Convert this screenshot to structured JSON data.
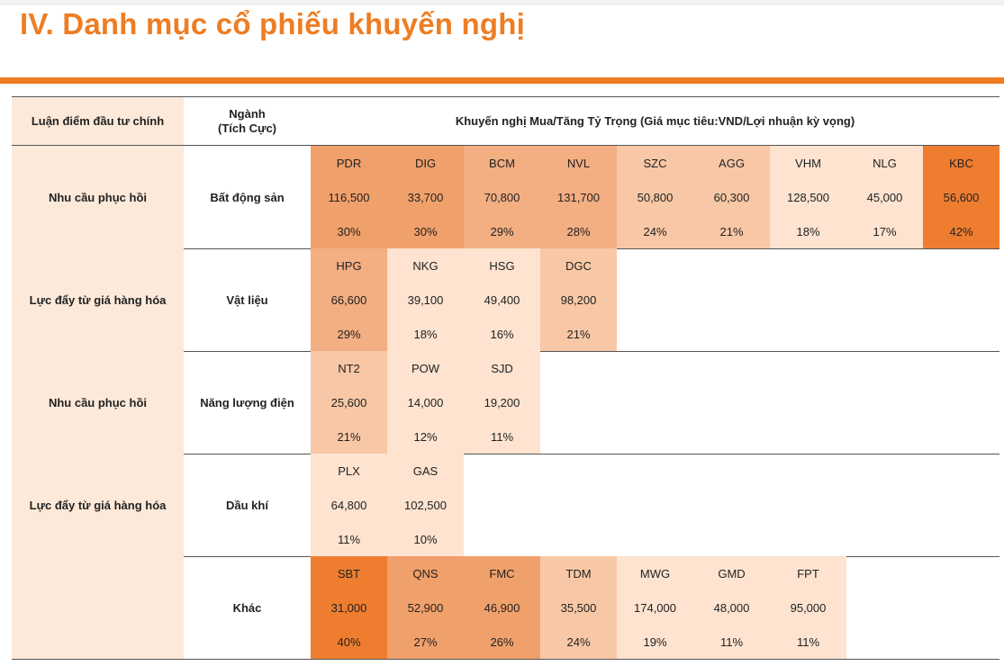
{
  "page_title": "IV. Danh mục cổ phiếu khuyến nghị",
  "table": {
    "headers": {
      "col1": "Luận điểm đầu tư chính",
      "col2_line1": "Ngành",
      "col2_line2": "(Tích Cực)",
      "col3": "Khuyến nghị Mua/Tăng Tỷ Trọng (Giá mục tiêu:VND/Lợi nhuận kỳ vọng)"
    },
    "rows": [
      {
        "thesis": "Nhu cầu phục hồi",
        "sector": "Bất động sản",
        "stocks": [
          {
            "ticker": "PDR",
            "target": "116,500",
            "upside": "30%",
            "color": "#f0a06a"
          },
          {
            "ticker": "DIG",
            "target": "33,700",
            "upside": "30%",
            "color": "#f0a06a"
          },
          {
            "ticker": "BCM",
            "target": "70,800",
            "upside": "29%",
            "color": "#f3ae82"
          },
          {
            "ticker": "NVL",
            "target": "131,700",
            "upside": "28%",
            "color": "#f3ae82"
          },
          {
            "ticker": "SZC",
            "target": "50,800",
            "upside": "24%",
            "color": "#f8c8a6"
          },
          {
            "ticker": "AGG",
            "target": "60,300",
            "upside": "21%",
            "color": "#f8c8a6"
          },
          {
            "ticker": "VHM",
            "target": "128,500",
            "upside": "18%",
            "color": "#fde3d0"
          },
          {
            "ticker": "NLG",
            "target": "45,000",
            "upside": "17%",
            "color": "#fde3d0"
          },
          {
            "ticker": "KBC",
            "target": "56,600",
            "upside": "42%",
            "color": "#ee7d30"
          }
        ]
      },
      {
        "thesis": "Lực đẩy từ giá hàng hóa",
        "sector": "Vật liệu",
        "stocks": [
          {
            "ticker": "HPG",
            "target": "66,600",
            "upside": "29%",
            "color": "#f3ae82"
          },
          {
            "ticker": "NKG",
            "target": "39,100",
            "upside": "18%",
            "color": "#fde3d0"
          },
          {
            "ticker": "HSG",
            "target": "49,400",
            "upside": "16%",
            "color": "#fde3d0"
          },
          {
            "ticker": "DGC",
            "target": "98,200",
            "upside": "21%",
            "color": "#f8c8a6"
          }
        ]
      },
      {
        "thesis": "Nhu cầu phục hồi",
        "sector": "Năng lượng điện",
        "stocks": [
          {
            "ticker": "NT2",
            "target": "25,600",
            "upside": "21%",
            "color": "#f8c8a6"
          },
          {
            "ticker": "POW",
            "target": "14,000",
            "upside": "12%",
            "color": "#fde3d0"
          },
          {
            "ticker": "SJD",
            "target": "19,200",
            "upside": "11%",
            "color": "#fde3d0"
          }
        ]
      },
      {
        "thesis": "Lực đẩy từ giá hàng hóa",
        "sector": "Dầu khí",
        "stocks": [
          {
            "ticker": "PLX",
            "target": "64,800",
            "upside": "11%",
            "color": "#fde3d0"
          },
          {
            "ticker": "GAS",
            "target": "102,500",
            "upside": "10%",
            "color": "#fde3d0"
          }
        ]
      },
      {
        "thesis": "",
        "sector": "Khác",
        "stocks": [
          {
            "ticker": "SBT",
            "target": "31,000",
            "upside": "40%",
            "color": "#ee7d30"
          },
          {
            "ticker": "QNS",
            "target": "52,900",
            "upside": "27%",
            "color": "#f0a06a"
          },
          {
            "ticker": "FMC",
            "target": "46,900",
            "upside": "26%",
            "color": "#f0a06a"
          },
          {
            "ticker": "TDM",
            "target": "35,500",
            "upside": "24%",
            "color": "#f8c8a6"
          },
          {
            "ticker": "MWG",
            "target": "174,000",
            "upside": "19%",
            "color": "#fde3d0"
          },
          {
            "ticker": "GMD",
            "target": "48,000",
            "upside": "11%",
            "color": "#fde3d0"
          },
          {
            "ticker": "FPT",
            "target": "95,000",
            "upside": "11%",
            "color": "#fde3d0"
          }
        ]
      }
    ]
  }
}
